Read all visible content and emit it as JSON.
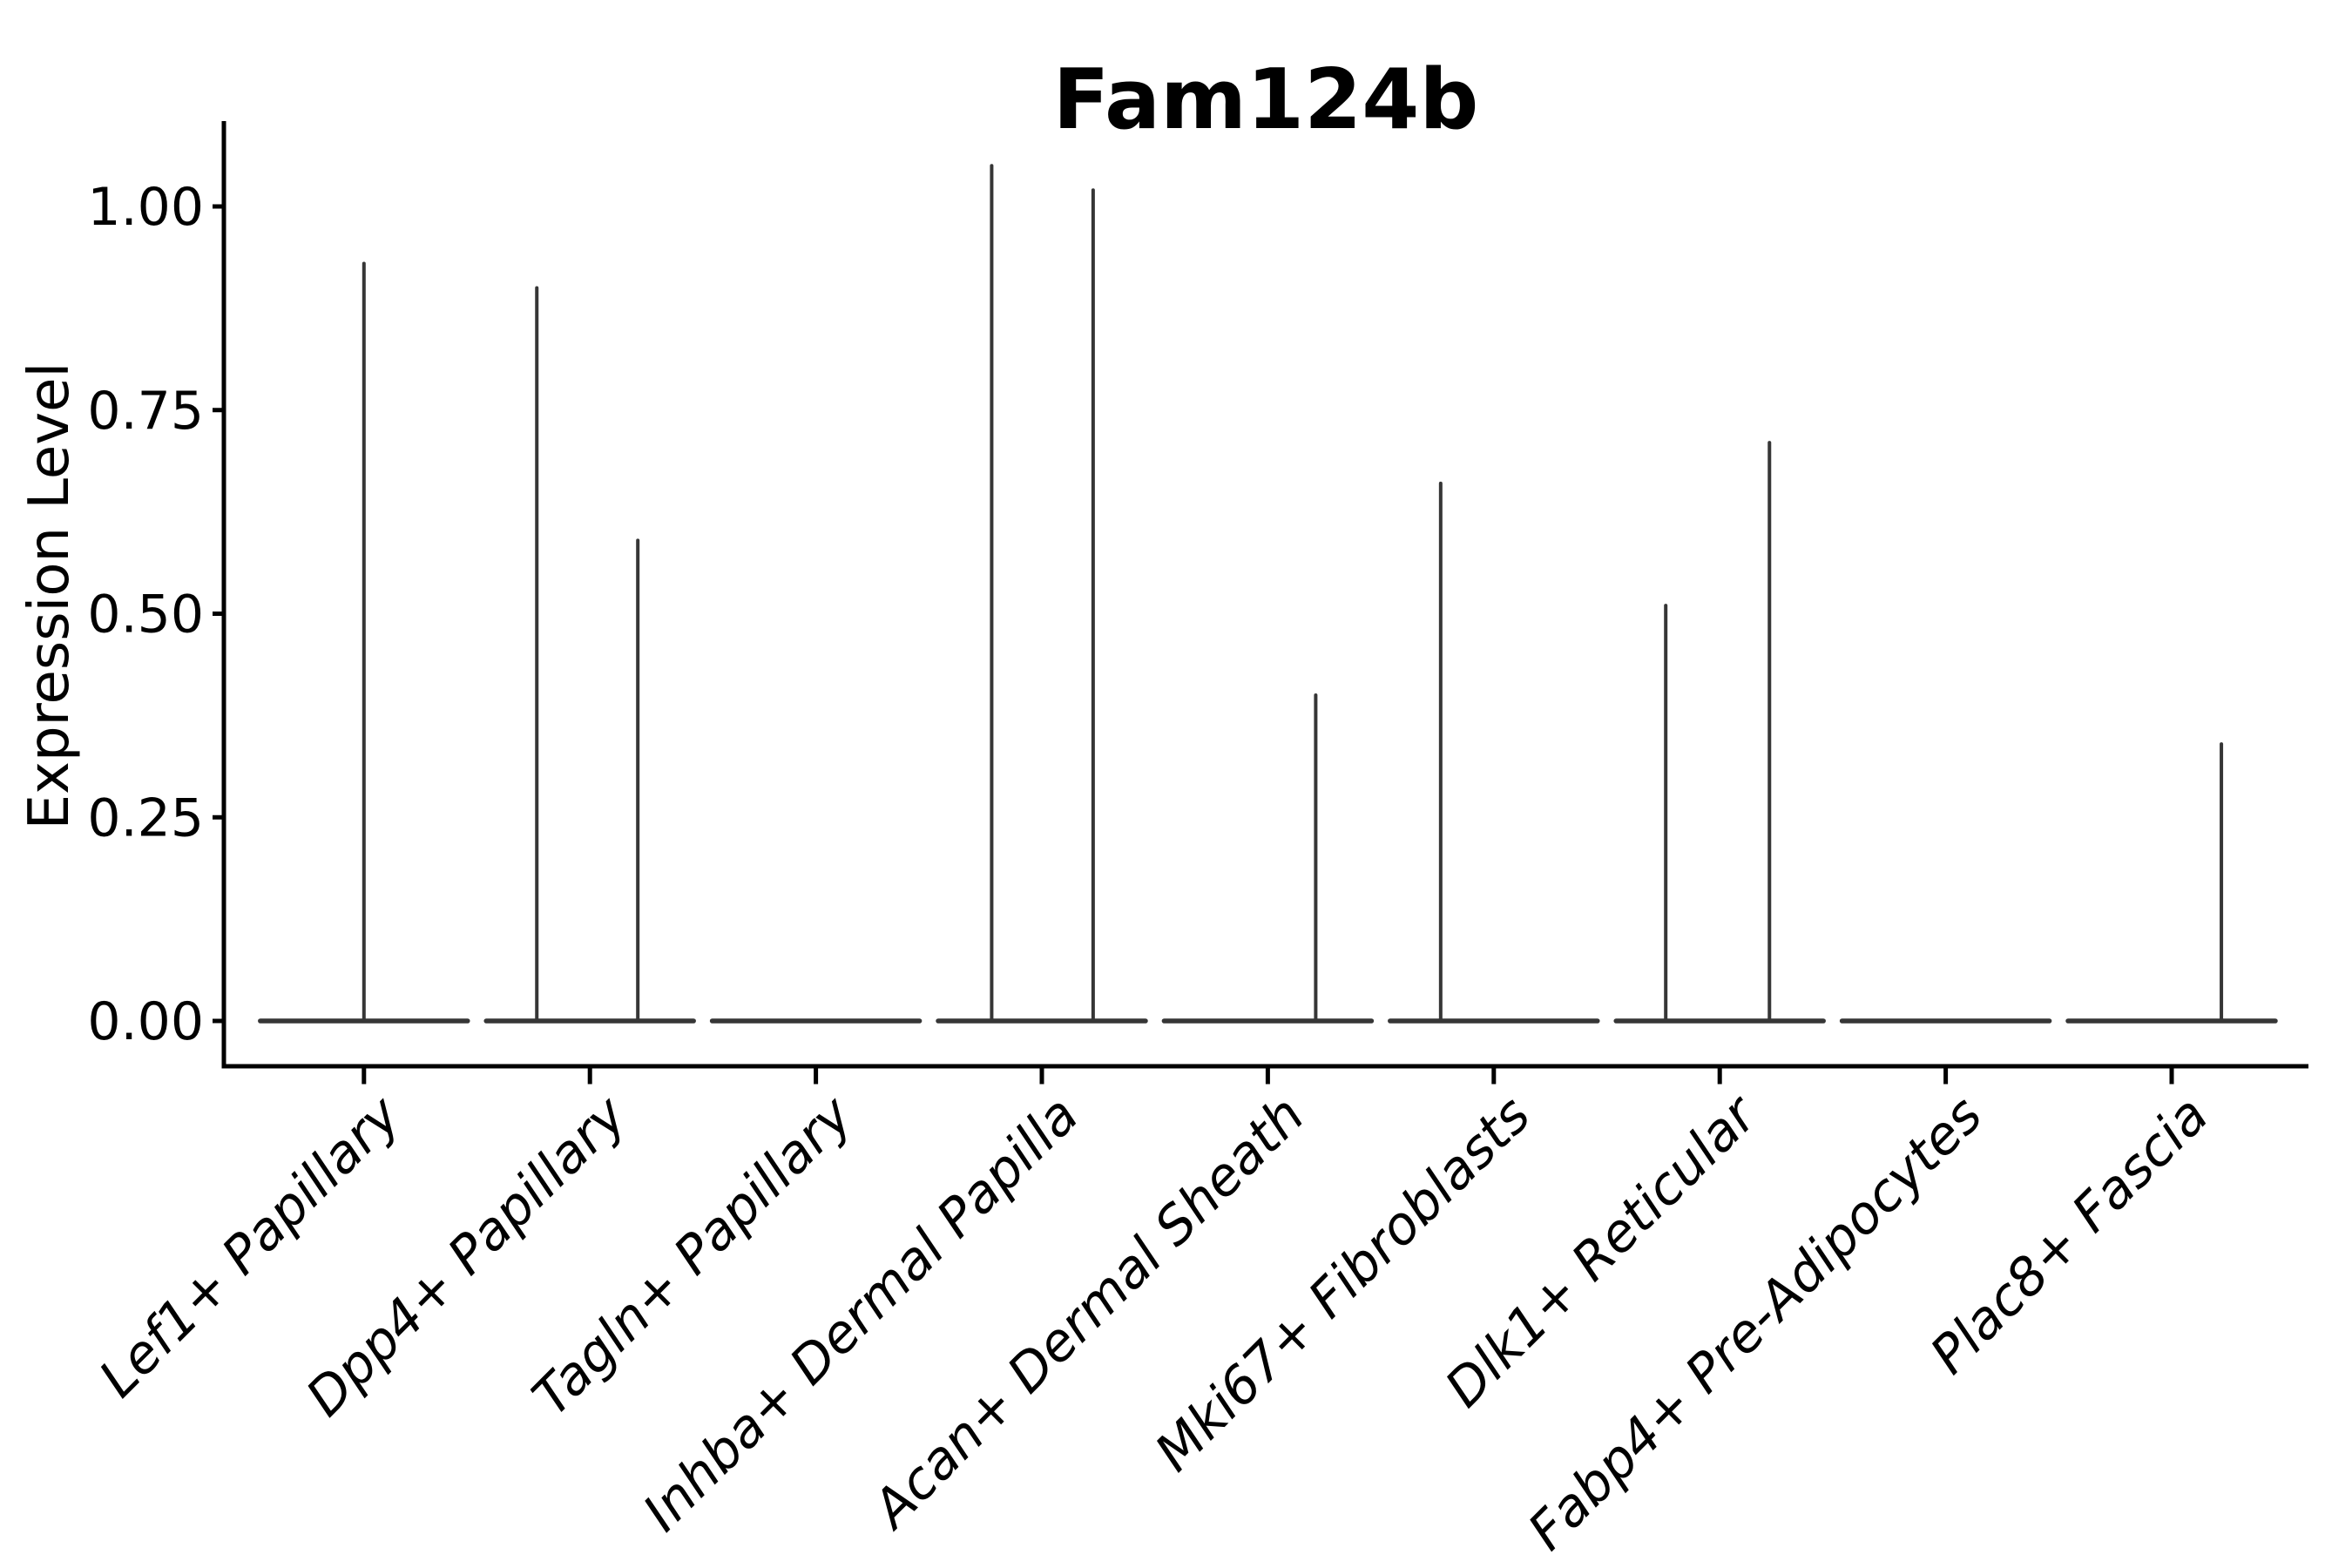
{
  "figure": {
    "title": "Fam124b"
  },
  "colors": {
    "background": "#ffffff",
    "axis": "#000000",
    "text": "#000000",
    "violin_stroke": "#363636"
  },
  "chart_data": {
    "type": "violin",
    "title": "Fam124b",
    "xlabel": "",
    "ylabel": "Expression Level",
    "ylim": [
      -0.055,
      1.105
    ],
    "yticks": [
      0.0,
      0.25,
      0.5,
      0.75,
      1.0
    ],
    "ytick_labels": [
      "0.00",
      "0.25",
      "0.50",
      "0.75",
      "1.00"
    ],
    "grid": false,
    "legend": "none",
    "categories": [
      "Lef1+ Papillary",
      "Dpp4+ Papillary",
      "Tagln+ Papillary",
      "Inhba+ Dermal Papilla",
      "Acan+ Dermal Sheath",
      "Mki67+ Fibroblasts",
      "Dlk1+ Reticular",
      "Fabp4+ Pre-Adipocytes",
      "Plac8+ Fascia"
    ],
    "violins": [
      {
        "category": "Lef1+ Papillary",
        "baseline_value": 0,
        "spikes": [
          {
            "offset_frac": 0.0,
            "max": 0.93
          }
        ]
      },
      {
        "category": "Dpp4+ Papillary",
        "baseline_value": 0,
        "spikes": [
          {
            "offset_frac": -0.235,
            "max": 0.9
          },
          {
            "offset_frac": 0.212,
            "max": 0.59
          }
        ]
      },
      {
        "category": "Tagln+ Papillary",
        "baseline_value": 0,
        "spikes": []
      },
      {
        "category": "Inhba+ Dermal Papilla",
        "baseline_value": 0,
        "spikes": [
          {
            "offset_frac": -0.222,
            "max": 1.05
          },
          {
            "offset_frac": 0.227,
            "max": 1.02
          }
        ]
      },
      {
        "category": "Acan+ Dermal Sheath",
        "baseline_value": 0,
        "spikes": [
          {
            "offset_frac": 0.212,
            "max": 0.4
          }
        ]
      },
      {
        "category": "Mki67+ Fibroblasts",
        "baseline_value": 0,
        "spikes": [
          {
            "offset_frac": -0.235,
            "max": 0.66
          }
        ]
      },
      {
        "category": "Dlk1+ Reticular",
        "baseline_value": 0,
        "spikes": [
          {
            "offset_frac": -0.239,
            "max": 0.51
          },
          {
            "offset_frac": 0.22,
            "max": 0.71
          }
        ]
      },
      {
        "category": "Fabp4+ Pre-Adipocytes",
        "baseline_value": 0,
        "spikes": []
      },
      {
        "category": "Plac8+ Fascia",
        "baseline_value": 0,
        "spikes": [
          {
            "offset_frac": 0.22,
            "max": 0.34
          }
        ]
      }
    ]
  }
}
